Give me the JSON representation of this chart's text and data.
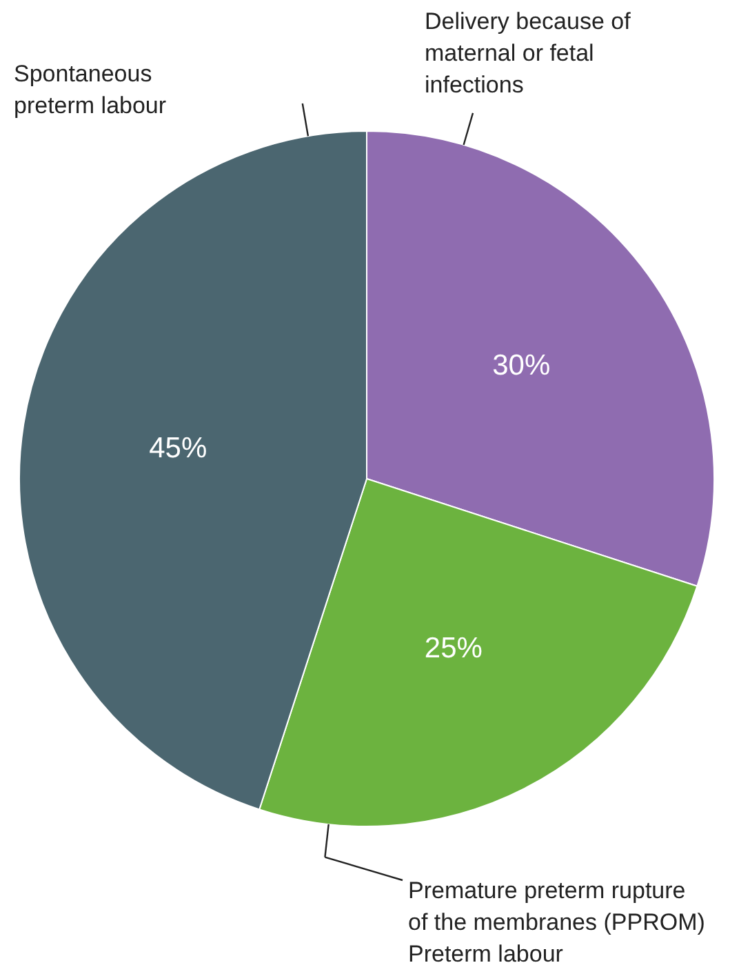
{
  "chart_data": {
    "type": "pie",
    "categories": [
      "Delivery because of\nmaternal or fetal\ninfections",
      "Premature preterm rupture\nof the membranes (PPROM)\nPreterm labour",
      "Spontaneous\npreterm labour"
    ],
    "values": [
      30,
      25,
      45
    ],
    "colors": [
      "#8f6cb0",
      "#6cb33f",
      "#4b6670"
    ],
    "value_labels": [
      "30%",
      "25%",
      "45%"
    ]
  }
}
